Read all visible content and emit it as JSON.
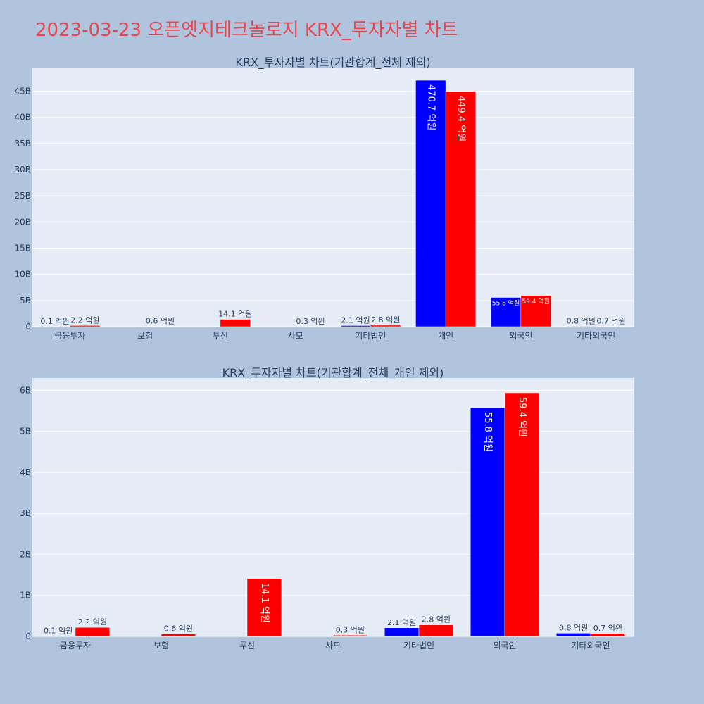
{
  "title": "2023-03-23 오픈엣지테크놀로지 KRX_투자자별 차트",
  "colors": {
    "buy": "#0000ff",
    "sell": "#ff0000",
    "plot_bg": "#e5ecf6",
    "page_bg": "#b0c4de",
    "title": "#e8474f"
  },
  "chart_data": [
    {
      "type": "bar",
      "title": "KRX_투자자별 차트(기관합계_전체 제외)",
      "categories": [
        "금융투자",
        "보험",
        "투신",
        "사모",
        "기타법인",
        "개인",
        "외국인",
        "기타외국인"
      ],
      "series": [
        {
          "values": [
            0.01,
            0,
            0,
            0,
            0.21,
            47.07,
            5.58,
            0.08
          ],
          "labels": [
            "0.1 억원",
            "",
            "",
            "",
            "2.1 억원",
            "470.7 억원",
            "55.8 억원",
            "0.8 억원"
          ]
        },
        {
          "values": [
            0.22,
            0.06,
            1.41,
            0.03,
            0.28,
            44.94,
            5.94,
            0.07
          ],
          "labels": [
            "2.2 억원",
            "0.6 억원",
            "14.1 억원",
            "0.3 억원",
            "2.8 억원",
            "449.4 억원",
            "59.4 억원",
            "0.7 억원"
          ]
        }
      ],
      "yticks": [
        "0",
        "5B",
        "10B",
        "15B",
        "20B",
        "25B",
        "30B",
        "35B",
        "40B",
        "45B"
      ],
      "ylim": [
        0,
        49.5
      ],
      "value_unit": "B"
    },
    {
      "type": "bar",
      "title": "KRX_투자자별 차트(기관합계_전체_개인 제외)",
      "categories": [
        "금융투자",
        "보험",
        "투신",
        "사모",
        "기타법인",
        "외국인",
        "기타외국인"
      ],
      "series": [
        {
          "values": [
            0.01,
            0,
            0,
            0,
            0.21,
            5.58,
            0.08
          ],
          "labels": [
            "0.1 억원",
            "",
            "",
            "",
            "2.1 억원",
            "55.8 억원",
            "0.8 억원"
          ]
        },
        {
          "values": [
            0.22,
            0.06,
            1.41,
            0.03,
            0.28,
            5.94,
            0.07
          ],
          "labels": [
            "2.2 억원",
            "0.6 억원",
            "14.1 억원",
            "0.3 억원",
            "2.8 억원",
            "59.4 억원",
            "0.7 억원"
          ]
        }
      ],
      "yticks": [
        "0",
        "1B",
        "2B",
        "3B",
        "4B",
        "5B",
        "6B"
      ],
      "ylim": [
        0,
        6.3
      ],
      "value_unit": "B"
    }
  ]
}
